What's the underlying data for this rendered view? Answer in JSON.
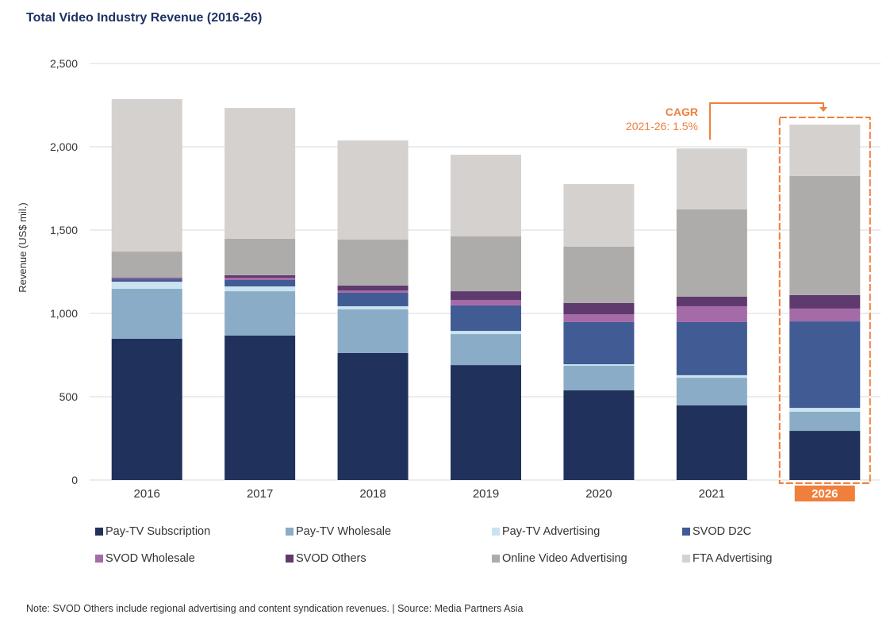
{
  "chart_data": {
    "type": "bar",
    "stacked": true,
    "title": "Total Video Industry Revenue (2016-26)",
    "xlabel": "",
    "ylabel": "Revenue (US$ mil.)",
    "ylim": [
      0,
      2500
    ],
    "yticks": [
      0,
      500,
      1000,
      1500,
      2000,
      2500
    ],
    "ytick_labels": [
      "0",
      "500",
      "1,000",
      "1,500",
      "2,000",
      "2,500"
    ],
    "grid": true,
    "legend_position": "bottom",
    "categories": [
      "2016",
      "2017",
      "2018",
      "2019",
      "2020",
      "2021",
      "2026"
    ],
    "highlight_category": "2026",
    "series": [
      {
        "name": "Pay-TV Subscription",
        "color": "#20315c",
        "values": [
          848,
          867,
          762,
          690,
          538,
          448,
          295
        ]
      },
      {
        "name": "Pay-TV Wholesale",
        "color": "#8aacc6",
        "values": [
          300,
          266,
          262,
          186,
          148,
          166,
          115
        ]
      },
      {
        "name": "Pay-TV Advertising",
        "color": "#c9e3f1",
        "values": [
          42,
          29,
          19,
          19,
          9,
          15,
          23
        ]
      },
      {
        "name": "SVOD D2C",
        "color": "#415b94",
        "values": [
          15,
          38,
          81,
          153,
          253,
          319,
          519
        ]
      },
      {
        "name": "SVOD Wholesale",
        "color": "#a56aa8",
        "values": [
          5,
          14,
          14,
          33,
          47,
          95,
          77
        ]
      },
      {
        "name": "SVOD Others",
        "color": "#5e3a6e",
        "values": [
          5,
          15,
          29,
          52,
          67,
          57,
          81
        ]
      },
      {
        "name": "Online Video Advertising",
        "color": "#adacab",
        "values": [
          156,
          219,
          276,
          329,
          338,
          524,
          714
        ]
      },
      {
        "name": "FTA Advertising",
        "color": "#d4d1cf",
        "values": [
          915,
          785,
          595,
          490,
          376,
          366,
          309
        ]
      }
    ],
    "annotations": {
      "cagr_title": "CAGR",
      "cagr_text": "2021-26: 1.5%",
      "accent_color": "#f07f3c"
    },
    "note": "Note: SVOD Others include regional advertising and content syndication revenues. | Source: Media Partners Asia"
  }
}
